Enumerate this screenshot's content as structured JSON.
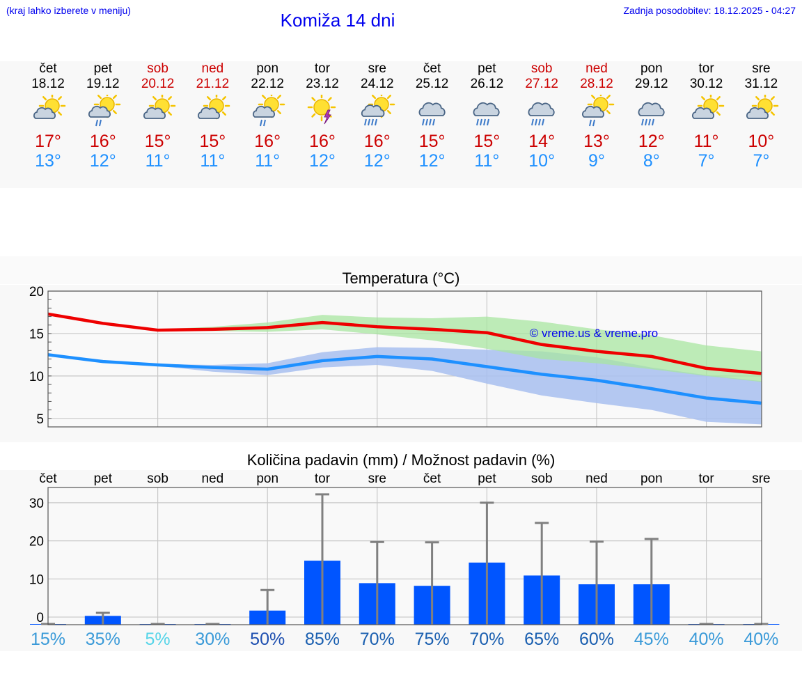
{
  "header": {
    "location_hint": "(kraj lahko izberete v meniju)",
    "title": "Komiža 14 dni",
    "updated": "Zadnja posodobitev: 18.12.2025 - 04:27"
  },
  "days": [
    {
      "name": "čet",
      "date": "18.12",
      "weekend": false,
      "icon": "sun-cloud-icon",
      "tmax": "17°",
      "tmin": "13°"
    },
    {
      "name": "pet",
      "date": "19.12",
      "weekend": false,
      "icon": "sun-cloud-rain-icon",
      "tmax": "16°",
      "tmin": "12°"
    },
    {
      "name": "sob",
      "date": "20.12",
      "weekend": true,
      "icon": "sun-cloud-icon",
      "tmax": "15°",
      "tmin": "11°"
    },
    {
      "name": "ned",
      "date": "21.12",
      "weekend": true,
      "icon": "sun-cloud-icon",
      "tmax": "15°",
      "tmin": "11°"
    },
    {
      "name": "pon",
      "date": "22.12",
      "weekend": false,
      "icon": "sun-cloud-rain-icon",
      "tmax": "16°",
      "tmin": "11°"
    },
    {
      "name": "tor",
      "date": "23.12",
      "weekend": false,
      "icon": "sun-thunderstorm-icon",
      "tmax": "16°",
      "tmin": "12°"
    },
    {
      "name": "sre",
      "date": "24.12",
      "weekend": false,
      "icon": "sun-cloud-heavy-rain-icon",
      "tmax": "16°",
      "tmin": "12°"
    },
    {
      "name": "čet",
      "date": "25.12",
      "weekend": false,
      "icon": "cloud-heavy-rain-icon",
      "tmax": "15°",
      "tmin": "12°"
    },
    {
      "name": "pet",
      "date": "26.12",
      "weekend": false,
      "icon": "cloud-heavy-rain-icon",
      "tmax": "15°",
      "tmin": "11°"
    },
    {
      "name": "sob",
      "date": "27.12",
      "weekend": true,
      "icon": "cloud-heavy-rain-icon",
      "tmax": "14°",
      "tmin": "10°"
    },
    {
      "name": "ned",
      "date": "28.12",
      "weekend": true,
      "icon": "sun-cloud-rain-icon",
      "tmax": "13°",
      "tmin": "9°"
    },
    {
      "name": "pon",
      "date": "29.12",
      "weekend": false,
      "icon": "cloud-heavy-rain-icon",
      "tmax": "12°",
      "tmin": "8°"
    },
    {
      "name": "tor",
      "date": "30.12",
      "weekend": false,
      "icon": "sun-cloud-icon",
      "tmax": "11°",
      "tmin": "7°"
    },
    {
      "name": "sre",
      "date": "31.12",
      "weekend": false,
      "icon": "sun-cloud-icon",
      "tmax": "10°",
      "tmin": "7°"
    }
  ],
  "colors": {
    "max_line": "#ee0000",
    "min_line": "#1e90ff",
    "max_band": "#a8e6a0",
    "min_band": "#a8c0f0",
    "overlap_band": "#7cc4a0",
    "bar": "#0055ff",
    "whisker": "#808080",
    "weekend": "#cc0000",
    "title": "#0000ee"
  },
  "chart_data": [
    {
      "type": "line",
      "title": "Temperatura (°C)",
      "xlabel": "",
      "ylabel": "",
      "ylim": [
        4,
        20
      ],
      "yticks": [
        5,
        10,
        15,
        20
      ],
      "x": [
        0,
        1,
        2,
        3,
        4,
        5,
        6,
        7,
        8,
        9,
        10,
        11,
        12,
        13
      ],
      "series": [
        {
          "name": "max",
          "values": [
            17.3,
            16.2,
            15.4,
            15.5,
            15.7,
            16.3,
            15.8,
            15.5,
            15.1,
            13.7,
            12.9,
            12.3,
            10.9,
            10.3
          ],
          "band_low": [
            17.3,
            16.2,
            15.3,
            15.3,
            15.2,
            15.5,
            14.9,
            14.2,
            13.2,
            12.0,
            11.5,
            10.8,
            10.0,
            9.3
          ],
          "band_high": [
            17.3,
            16.2,
            15.5,
            15.8,
            16.3,
            17.2,
            16.9,
            16.8,
            17.0,
            16.4,
            15.5,
            14.8,
            13.6,
            12.9
          ]
        },
        {
          "name": "min",
          "values": [
            12.5,
            11.7,
            11.3,
            11.0,
            10.8,
            11.8,
            12.3,
            12.0,
            11.1,
            10.2,
            9.5,
            8.5,
            7.4,
            6.8
          ],
          "band_low": [
            12.5,
            11.7,
            11.2,
            10.5,
            10.1,
            11.0,
            11.3,
            10.6,
            9.1,
            7.7,
            6.8,
            6.0,
            4.6,
            4.3
          ],
          "band_high": [
            12.5,
            11.7,
            11.4,
            11.3,
            11.5,
            12.8,
            13.4,
            13.3,
            13.1,
            12.9,
            12.2,
            11.0,
            10.1,
            9.4
          ]
        }
      ],
      "annotation": "© vreme.us & vreme.pro"
    },
    {
      "type": "bar",
      "title": "Količina padavin (mm) / Možnost padavin (%)",
      "categories": [
        "čet",
        "pet",
        "sob",
        "ned",
        "pon",
        "tor",
        "sre",
        "čet",
        "pet",
        "sob",
        "ned",
        "pon",
        "tor",
        "sre"
      ],
      "values": [
        0,
        0.3,
        0,
        0,
        1.7,
        14.8,
        8.9,
        8.2,
        14.3,
        10.9,
        8.6,
        8.6,
        0,
        0
      ],
      "max_values": [
        0,
        1.1,
        0,
        0,
        7.1,
        32.2,
        19.7,
        19.6,
        30.0,
        24.7,
        19.8,
        20.5,
        0,
        0
      ],
      "probability": [
        "15%",
        "35%",
        "5%",
        "30%",
        "50%",
        "85%",
        "70%",
        "75%",
        "70%",
        "65%",
        "60%",
        "45%",
        "40%",
        "40%"
      ],
      "probability_values": [
        15,
        35,
        5,
        30,
        50,
        85,
        70,
        75,
        70,
        65,
        60,
        45,
        40,
        40
      ],
      "ylim": [
        -2,
        34
      ],
      "yticks": [
        0,
        10,
        20,
        30
      ],
      "xlabel": "",
      "ylabel": ""
    }
  ]
}
